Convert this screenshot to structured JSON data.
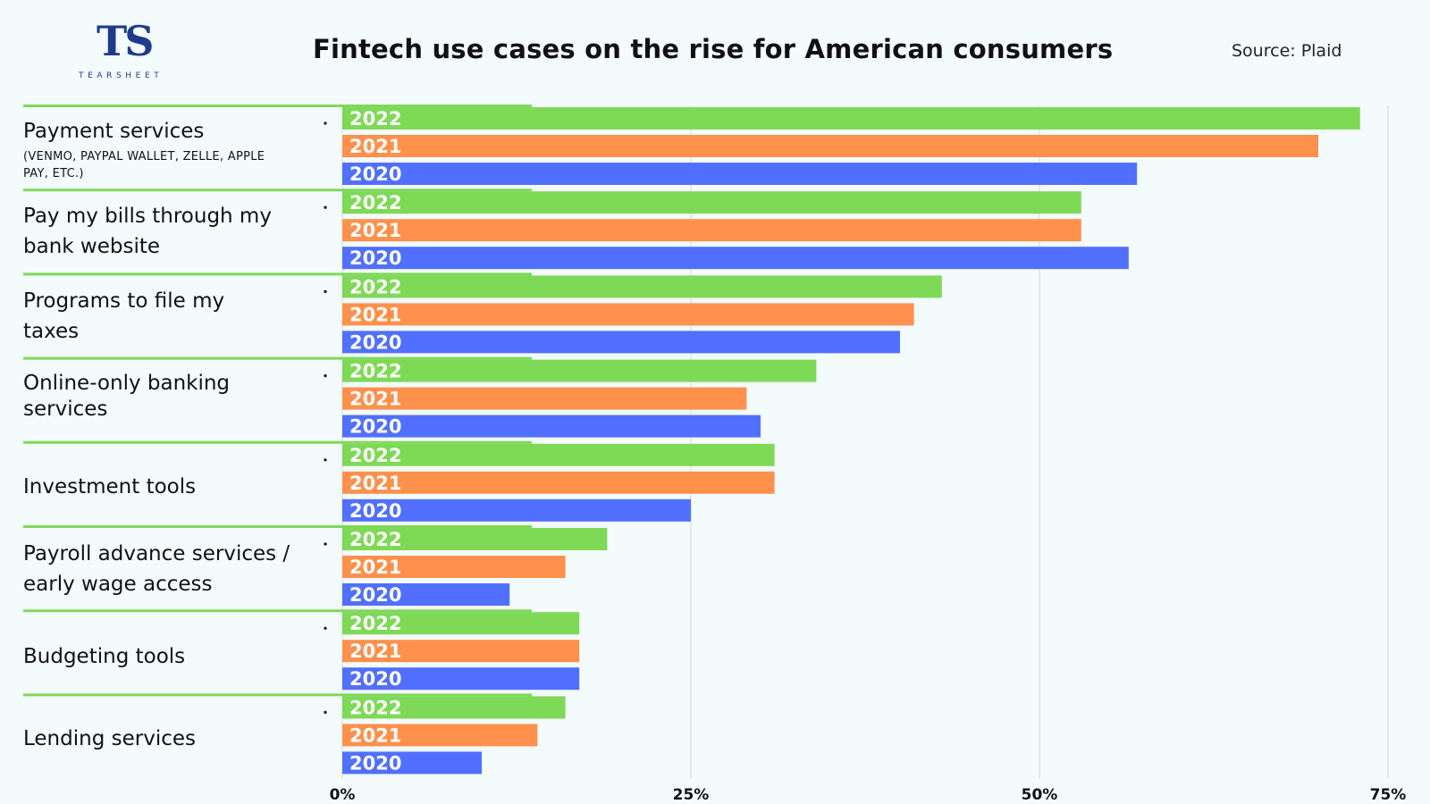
{
  "brand": {
    "logo_mark": "TS",
    "logo_text": "TEARSHEET"
  },
  "title": "Fintech use cases on the rise for American consumers",
  "source": "Source: Plaid",
  "colors": {
    "2022": "#7ed957",
    "2021": "#ff914d",
    "2020": "#5170ff"
  },
  "chart_data": {
    "type": "bar",
    "orientation": "horizontal",
    "categories": [
      {
        "name": "Payment services",
        "sub": "(VENMO, PAYPAL WALLET, ZELLE, APPLE PAY, ETC.)"
      },
      {
        "name": "Pay my bills through my bank website",
        "sub": ""
      },
      {
        "name": "Programs to file my taxes",
        "sub": ""
      },
      {
        "name": "Online-only banking services",
        "sub": ""
      },
      {
        "name": "Investment tools",
        "sub": ""
      },
      {
        "name": "Payroll advance services / early wage access",
        "sub": ""
      },
      {
        "name": "Budgeting tools",
        "sub": ""
      },
      {
        "name": "Lending services",
        "sub": ""
      }
    ],
    "series": [
      {
        "name": "2022",
        "values": [
          73,
          53,
          43,
          34,
          31,
          19,
          17,
          16
        ]
      },
      {
        "name": "2021",
        "values": [
          70,
          53,
          41,
          29,
          31,
          16,
          17,
          14
        ]
      },
      {
        "name": "2020",
        "values": [
          57,
          56.4,
          40,
          30,
          25,
          12,
          17,
          10
        ]
      }
    ],
    "x_ticks": [
      "0%",
      "25%",
      "50%",
      "75%"
    ],
    "xlim": [
      0,
      75
    ],
    "grid": true
  }
}
